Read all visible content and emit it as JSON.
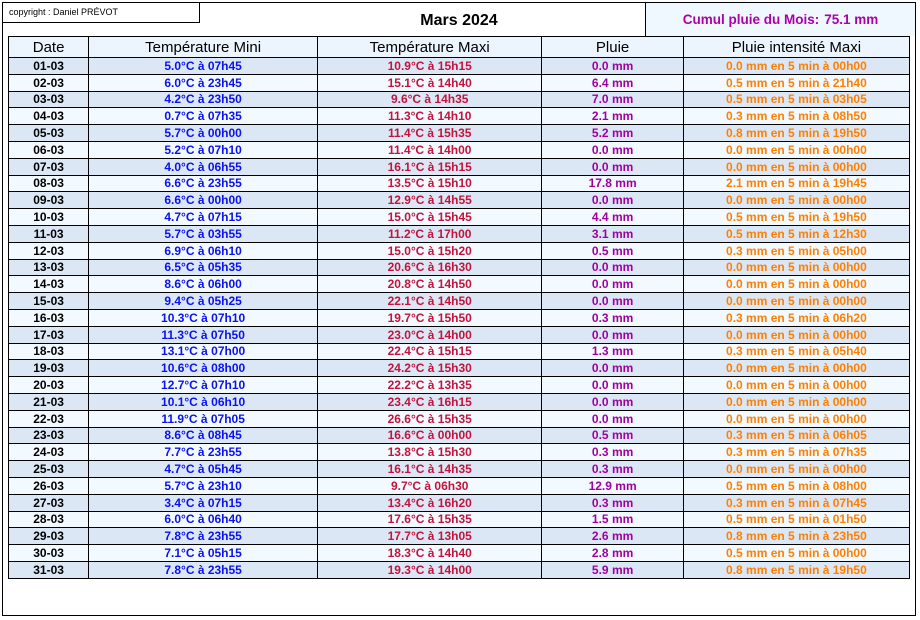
{
  "header": {
    "copyright": "copyright : Daniel PRÉVOT",
    "title": "Mars 2024",
    "cumul_label": "Cumul pluie du Mois:",
    "cumul_value": "75.1 mm"
  },
  "table": {
    "columns": [
      "Date",
      "Température Mini",
      "Température Maxi",
      "Pluie",
      "Pluie intensité Maxi"
    ],
    "rows": [
      [
        "01-03",
        "5.0°C à 07h45",
        "10.9°C à 15h15",
        "0.0 mm",
        "0.0 mm en 5 min à 00h00"
      ],
      [
        "02-03",
        "6.0°C à 23h45",
        "15.1°C à 14h40",
        "6.4 mm",
        "0.5 mm en 5 min à 21h40"
      ],
      [
        "03-03",
        "4.2°C à 23h50",
        "9.6°C à 14h35",
        "7.0 mm",
        "0.5 mm en 5 min à 03h05"
      ],
      [
        "04-03",
        "0.7°C à 07h35",
        "11.3°C à 14h10",
        "2.1 mm",
        "0.3 mm en 5 min à 08h50"
      ],
      [
        "05-03",
        "5.7°C à 00h00",
        "11.4°C à 15h35",
        "5.2 mm",
        "0.8 mm en 5 min à 19h50"
      ],
      [
        "06-03",
        "5.2°C à 07h10",
        "11.4°C à 14h00",
        "0.0 mm",
        "0.0 mm en 5 min à 00h00"
      ],
      [
        "07-03",
        "4.0°C à 06h55",
        "16.1°C à 15h15",
        "0.0 mm",
        "0.0 mm en 5 min à 00h00"
      ],
      [
        "08-03",
        "6.6°C à 23h55",
        "13.5°C à 15h10",
        "17.8 mm",
        "2.1 mm en 5 min à 19h45"
      ],
      [
        "09-03",
        "6.6°C à 00h00",
        "12.9°C à 14h55",
        "0.0 mm",
        "0.0 mm en 5 min à 00h00"
      ],
      [
        "10-03",
        "4.7°C à 07h15",
        "15.0°C à 15h45",
        "4.4 mm",
        "0.5 mm en 5 min à 19h50"
      ],
      [
        "11-03",
        "5.7°C à 03h55",
        "11.2°C à 17h00",
        "3.1 mm",
        "0.5 mm en 5 min à 12h30"
      ],
      [
        "12-03",
        "6.9°C à 06h10",
        "15.0°C à 15h20",
        "0.5 mm",
        "0.3 mm en 5 min à 05h00"
      ],
      [
        "13-03",
        "6.5°C à 05h35",
        "20.6°C à 16h30",
        "0.0 mm",
        "0.0 mm en 5 min à 00h00"
      ],
      [
        "14-03",
        "8.6°C à 06h00",
        "20.8°C à 14h50",
        "0.0 mm",
        "0.0 mm en 5 min à 00h00"
      ],
      [
        "15-03",
        "9.4°C à 05h25",
        "22.1°C à 14h50",
        "0.0 mm",
        "0.0 mm en 5 min à 00h00"
      ],
      [
        "16-03",
        "10.3°C à 07h10",
        "19.7°C à 15h50",
        "0.3 mm",
        "0.3 mm en 5 min à 06h20"
      ],
      [
        "17-03",
        "11.3°C à 07h50",
        "23.0°C à 14h00",
        "0.0 mm",
        "0.0 mm en 5 min à 00h00"
      ],
      [
        "18-03",
        "13.1°C à 07h00",
        "22.4°C à 15h15",
        "1.3 mm",
        "0.3 mm en 5 min à 05h40"
      ],
      [
        "19-03",
        "10.6°C à 08h00",
        "24.2°C à 15h30",
        "0.0 mm",
        "0.0 mm en 5 min à 00h00"
      ],
      [
        "20-03",
        "12.7°C à 07h10",
        "22.2°C à 13h35",
        "0.0 mm",
        "0.0 mm en 5 min à 00h00"
      ],
      [
        "21-03",
        "10.1°C à 06h10",
        "23.4°C à 16h15",
        "0.0 mm",
        "0.0 mm en 5 min à 00h00"
      ],
      [
        "22-03",
        "11.9°C à 07h05",
        "26.6°C à 15h35",
        "0.0 mm",
        "0.0 mm en 5 min à 00h00"
      ],
      [
        "23-03",
        "8.6°C à 08h45",
        "16.6°C à 00h00",
        "0.5 mm",
        "0.3 mm en 5 min à 06h05"
      ],
      [
        "24-03",
        "7.7°C à 23h55",
        "13.8°C à 15h30",
        "0.3 mm",
        "0.3 mm en 5 min à 07h35"
      ],
      [
        "25-03",
        "4.7°C à 05h45",
        "16.1°C à 14h35",
        "0.3 mm",
        "0.0 mm en 5 min à 00h00"
      ],
      [
        "26-03",
        "5.7°C à 23h10",
        "9.7°C à 06h30",
        "12.9 mm",
        "0.5 mm en 5 min à 08h00"
      ],
      [
        "27-03",
        "3.4°C à 07h15",
        "13.4°C à 16h20",
        "0.3 mm",
        "0.3 mm en 5 min à 07h45"
      ],
      [
        "28-03",
        "6.0°C à 06h40",
        "17.6°C à 15h35",
        "1.5 mm",
        "0.5 mm en 5 min à 01h50"
      ],
      [
        "29-03",
        "7.8°C à 23h55",
        "17.7°C à 13h05",
        "2.6 mm",
        "0.8 mm en 5 min à 23h50"
      ],
      [
        "30-03",
        "7.1°C à 05h15",
        "18.3°C à 14h40",
        "2.8 mm",
        "0.5 mm en 5 min à 00h00"
      ],
      [
        "31-03",
        "7.8°C à 23h55",
        "19.3°C à 14h00",
        "5.9 mm",
        "0.8 mm en 5 min à 19h50"
      ]
    ]
  },
  "colors": {
    "date": "#000000",
    "temp-mini": "#0a12f2",
    "temp-maxi": "#c2143c",
    "pluie": "#a000a0",
    "pluie-intensite": "#ff8000",
    "cumul": "#aa00aa",
    "row-odd-bg": "#dce7f6",
    "row-even-bg": "#f2f9ff",
    "header-row-bg": "#ecf5fd",
    "border": "#000000"
  }
}
